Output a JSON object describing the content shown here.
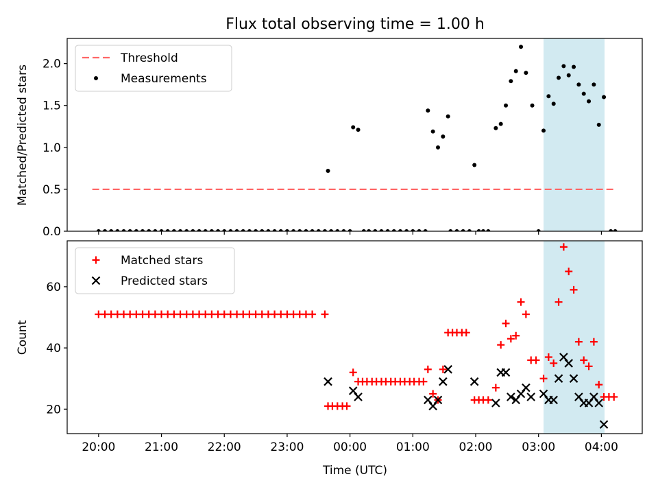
{
  "title": "Flux total observing time = 1.00 h",
  "chart_data": [
    {
      "type": "scatter",
      "ylabel": "Matched/Predicted stars",
      "ylim": [
        0,
        2.3
      ],
      "xlim": [
        -4.5,
        4.65
      ],
      "yticks": [
        0,
        0.5,
        1.0,
        1.5,
        2.0
      ],
      "ytick_labels": [
        "0.0",
        "0.5",
        "1.0",
        "1.5",
        "2.0"
      ],
      "shaded_span": [
        3.08,
        4.05
      ],
      "shaded_color": "#add8e6",
      "legend_position": "upper-left",
      "legend": [
        "Threshold",
        "Measurements"
      ],
      "threshold": {
        "name": "Threshold",
        "value": 0.5,
        "x_range": [
          -4.1,
          4.2
        ],
        "color": "#ff6666",
        "style": "dashed"
      },
      "series": [
        {
          "name": "Measurements",
          "marker": "dot",
          "color": "#000000",
          "points": [
            [
              -4.0,
              0
            ],
            [
              -3.9,
              0
            ],
            [
              -3.8,
              0
            ],
            [
              -3.7,
              0
            ],
            [
              -3.6,
              0
            ],
            [
              -3.5,
              0
            ],
            [
              -3.4,
              0
            ],
            [
              -3.3,
              0
            ],
            [
              -3.2,
              0
            ],
            [
              -3.1,
              0
            ],
            [
              -3.0,
              0
            ],
            [
              -2.9,
              0
            ],
            [
              -2.8,
              0
            ],
            [
              -2.7,
              0
            ],
            [
              -2.6,
              0
            ],
            [
              -2.5,
              0
            ],
            [
              -2.4,
              0
            ],
            [
              -2.3,
              0
            ],
            [
              -2.2,
              0
            ],
            [
              -2.1,
              0
            ],
            [
              -2.0,
              0
            ],
            [
              -1.9,
              0
            ],
            [
              -1.8,
              0
            ],
            [
              -1.7,
              0
            ],
            [
              -1.6,
              0
            ],
            [
              -1.5,
              0
            ],
            [
              -1.4,
              0
            ],
            [
              -1.3,
              0
            ],
            [
              -1.2,
              0
            ],
            [
              -1.1,
              0
            ],
            [
              -1.0,
              0
            ],
            [
              -0.9,
              0
            ],
            [
              -0.8,
              0
            ],
            [
              -0.7,
              0
            ],
            [
              -0.6,
              0
            ],
            [
              -0.5,
              0
            ],
            [
              -0.4,
              0
            ],
            [
              -0.35,
              0.72
            ],
            [
              -0.3,
              0
            ],
            [
              -0.2,
              0
            ],
            [
              -0.1,
              0
            ],
            [
              0.0,
              0
            ],
            [
              0.05,
              1.24
            ],
            [
              0.13,
              1.21
            ],
            [
              0.22,
              0
            ],
            [
              0.3,
              0
            ],
            [
              0.4,
              0
            ],
            [
              0.5,
              0
            ],
            [
              0.6,
              0
            ],
            [
              0.7,
              0
            ],
            [
              0.8,
              0
            ],
            [
              0.9,
              0
            ],
            [
              1.0,
              0
            ],
            [
              1.1,
              0
            ],
            [
              1.2,
              0
            ],
            [
              1.24,
              1.44
            ],
            [
              1.32,
              1.19
            ],
            [
              1.4,
              1.0
            ],
            [
              1.48,
              1.13
            ],
            [
              1.56,
              1.37
            ],
            [
              1.6,
              0
            ],
            [
              1.7,
              0
            ],
            [
              1.8,
              0
            ],
            [
              1.9,
              0
            ],
            [
              1.98,
              0.79
            ],
            [
              2.05,
              0
            ],
            [
              2.12,
              0
            ],
            [
              2.2,
              0
            ],
            [
              2.32,
              1.23
            ],
            [
              2.4,
              1.28
            ],
            [
              2.48,
              1.5
            ],
            [
              2.56,
              1.79
            ],
            [
              2.64,
              1.91
            ],
            [
              2.72,
              2.2
            ],
            [
              2.8,
              1.89
            ],
            [
              2.9,
              1.5
            ],
            [
              3.0,
              0
            ],
            [
              3.08,
              1.2
            ],
            [
              3.16,
              1.61
            ],
            [
              3.24,
              1.52
            ],
            [
              3.32,
              1.83
            ],
            [
              3.4,
              1.97
            ],
            [
              3.48,
              1.86
            ],
            [
              3.56,
              1.96
            ],
            [
              3.64,
              1.75
            ],
            [
              3.72,
              1.64
            ],
            [
              3.8,
              1.55
            ],
            [
              3.88,
              1.75
            ],
            [
              3.96,
              1.27
            ],
            [
              4.04,
              1.6
            ],
            [
              4.15,
              0
            ],
            [
              4.22,
              0
            ]
          ]
        }
      ]
    },
    {
      "type": "scatter",
      "xlabel": "Time (UTC)",
      "ylabel": "Count",
      "ylim": [
        12,
        75
      ],
      "xlim": [
        -4.5,
        4.65
      ],
      "yticks": [
        20,
        40,
        60
      ],
      "ytick_labels": [
        "20",
        "40",
        "60"
      ],
      "xticks": [
        -4,
        -3,
        -2,
        -1,
        0,
        1,
        2,
        3,
        4
      ],
      "xtick_labels": [
        "20:00",
        "21:00",
        "22:00",
        "23:00",
        "00:00",
        "01:00",
        "02:00",
        "03:00",
        "04:00"
      ],
      "shaded_span": [
        3.08,
        4.05
      ],
      "shaded_color": "#add8e6",
      "legend_position": "upper-left",
      "legend": [
        "Matched stars",
        "Predicted stars"
      ],
      "series": [
        {
          "name": "Matched stars",
          "marker": "plus",
          "color": "#ff0000",
          "points": [
            [
              -4.0,
              51
            ],
            [
              -3.9,
              51
            ],
            [
              -3.8,
              51
            ],
            [
              -3.7,
              51
            ],
            [
              -3.6,
              51
            ],
            [
              -3.5,
              51
            ],
            [
              -3.4,
              51
            ],
            [
              -3.3,
              51
            ],
            [
              -3.2,
              51
            ],
            [
              -3.1,
              51
            ],
            [
              -3.0,
              51
            ],
            [
              -2.9,
              51
            ],
            [
              -2.8,
              51
            ],
            [
              -2.7,
              51
            ],
            [
              -2.6,
              51
            ],
            [
              -2.5,
              51
            ],
            [
              -2.4,
              51
            ],
            [
              -2.3,
              51
            ],
            [
              -2.2,
              51
            ],
            [
              -2.1,
              51
            ],
            [
              -2.0,
              51
            ],
            [
              -1.9,
              51
            ],
            [
              -1.8,
              51
            ],
            [
              -1.7,
              51
            ],
            [
              -1.6,
              51
            ],
            [
              -1.5,
              51
            ],
            [
              -1.4,
              51
            ],
            [
              -1.3,
              51
            ],
            [
              -1.2,
              51
            ],
            [
              -1.1,
              51
            ],
            [
              -1.0,
              51
            ],
            [
              -0.9,
              51
            ],
            [
              -0.8,
              51
            ],
            [
              -0.7,
              51
            ],
            [
              -0.6,
              51
            ],
            [
              -0.4,
              51
            ],
            [
              -0.35,
              21
            ],
            [
              -0.28,
              21
            ],
            [
              -0.2,
              21
            ],
            [
              -0.12,
              21
            ],
            [
              -0.05,
              21
            ],
            [
              0.05,
              32
            ],
            [
              0.13,
              29
            ],
            [
              0.2,
              29
            ],
            [
              0.27,
              29
            ],
            [
              0.35,
              29
            ],
            [
              0.42,
              29
            ],
            [
              0.5,
              29
            ],
            [
              0.57,
              29
            ],
            [
              0.65,
              29
            ],
            [
              0.72,
              29
            ],
            [
              0.8,
              29
            ],
            [
              0.87,
              29
            ],
            [
              0.95,
              29
            ],
            [
              1.02,
              29
            ],
            [
              1.1,
              29
            ],
            [
              1.17,
              29
            ],
            [
              1.24,
              33
            ],
            [
              1.32,
              25
            ],
            [
              1.4,
              23
            ],
            [
              1.48,
              33
            ],
            [
              1.56,
              45
            ],
            [
              1.63,
              45
            ],
            [
              1.7,
              45
            ],
            [
              1.78,
              45
            ],
            [
              1.85,
              45
            ],
            [
              1.98,
              23
            ],
            [
              2.05,
              23
            ],
            [
              2.12,
              23
            ],
            [
              2.2,
              23
            ],
            [
              2.32,
              27
            ],
            [
              2.4,
              41
            ],
            [
              2.48,
              48
            ],
            [
              2.56,
              43
            ],
            [
              2.64,
              44
            ],
            [
              2.72,
              55
            ],
            [
              2.8,
              51
            ],
            [
              2.88,
              36
            ],
            [
              2.96,
              36
            ],
            [
              3.08,
              30
            ],
            [
              3.16,
              37
            ],
            [
              3.24,
              35
            ],
            [
              3.32,
              55
            ],
            [
              3.4,
              73
            ],
            [
              3.48,
              65
            ],
            [
              3.56,
              59
            ],
            [
              3.64,
              42
            ],
            [
              3.72,
              36
            ],
            [
              3.8,
              34
            ],
            [
              3.88,
              42
            ],
            [
              3.96,
              28
            ],
            [
              4.04,
              24
            ],
            [
              4.12,
              24
            ],
            [
              4.2,
              24
            ]
          ]
        },
        {
          "name": "Predicted stars",
          "marker": "x",
          "color": "#000000",
          "points": [
            [
              -0.35,
              29
            ],
            [
              0.05,
              26
            ],
            [
              0.13,
              24
            ],
            [
              1.24,
              23
            ],
            [
              1.32,
              21
            ],
            [
              1.4,
              23
            ],
            [
              1.48,
              29
            ],
            [
              1.56,
              33
            ],
            [
              1.98,
              29
            ],
            [
              2.32,
              22
            ],
            [
              2.4,
              32
            ],
            [
              2.48,
              32
            ],
            [
              2.56,
              24
            ],
            [
              2.64,
              23
            ],
            [
              2.72,
              25
            ],
            [
              2.8,
              27
            ],
            [
              2.88,
              24
            ],
            [
              3.08,
              25
            ],
            [
              3.16,
              23
            ],
            [
              3.24,
              23
            ],
            [
              3.32,
              30
            ],
            [
              3.4,
              37
            ],
            [
              3.48,
              35
            ],
            [
              3.56,
              30
            ],
            [
              3.64,
              24
            ],
            [
              3.72,
              22
            ],
            [
              3.8,
              22
            ],
            [
              3.88,
              24
            ],
            [
              3.96,
              22
            ],
            [
              4.04,
              15
            ]
          ]
        }
      ]
    }
  ]
}
